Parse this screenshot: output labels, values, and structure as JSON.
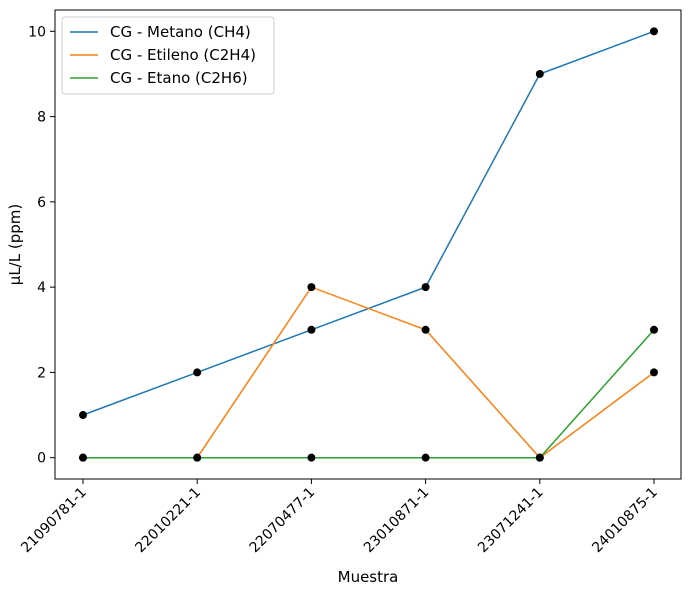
{
  "chart_data": {
    "type": "line",
    "categories": [
      "21090781-1",
      "22010221-1",
      "22070477-1",
      "23010871-1",
      "23071241-1",
      "24010875-1"
    ],
    "series": [
      {
        "name": "CG - Metano (CH4)",
        "values": [
          1,
          2,
          3,
          4,
          9,
          10
        ],
        "color": "#1f77b4"
      },
      {
        "name": "CG - Etileno (C2H4)",
        "values": [
          0,
          0,
          4,
          3,
          0,
          2
        ],
        "color": "#ff7f0e"
      },
      {
        "name": "CG - Etano (C2H6)",
        "values": [
          0,
          0,
          0,
          0,
          0,
          3
        ],
        "color": "#2ca02c"
      }
    ],
    "marker_color": "#000000",
    "xlabel": "Muestra",
    "ylabel": "µL/L (ppm)",
    "ylim": [
      -0.5,
      10.5
    ],
    "yticks": [
      0,
      2,
      4,
      6,
      8,
      10
    ],
    "legend_position": "top-left",
    "grid": false
  }
}
